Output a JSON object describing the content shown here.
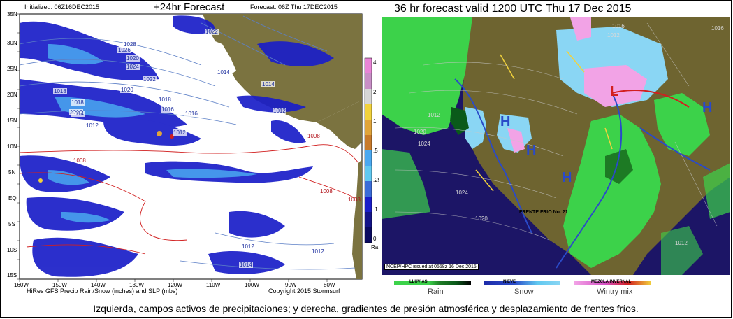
{
  "caption": "Izquierda, campos activos de precipitaciones; y derecha, gradientes de presión atmosférica y desplazamiento de frentes fríos.",
  "left_map": {
    "title": "+24hr Forecast",
    "initialized": "Initialized: 06Z16DEC2015",
    "forecast": "Forecast: 06Z Thu 17DEC2015",
    "footer_left": "HiRes GFS Precip Rain/Snow (inches) and SLP (mbs)",
    "footer_right": "Copyright 2015 Stormsurf",
    "lat_labels": [
      "35N",
      "30N",
      "25N",
      "20N",
      "15N",
      "10N",
      "5N",
      "EQ",
      "5S",
      "10S",
      "15S"
    ],
    "lon_labels": [
      "160W",
      "150W",
      "140W",
      "130W",
      "120W",
      "110W",
      "100W",
      "90W",
      "80W"
    ],
    "pressure_labels": [
      {
        "text": "1028"
      },
      {
        "text": "1026"
      },
      {
        "text": "1024"
      },
      {
        "text": "1022"
      },
      {
        "text": "1020"
      },
      {
        "text": "1018"
      },
      {
        "text": "1018"
      },
      {
        "text": "1016"
      },
      {
        "text": "1014"
      },
      {
        "text": "1012"
      },
      {
        "text": "1020"
      },
      {
        "text": "1018"
      },
      {
        "text": "1016"
      },
      {
        "text": "1016"
      },
      {
        "text": "1014"
      },
      {
        "text": "1012"
      },
      {
        "text": "1022"
      },
      {
        "text": "1014"
      },
      {
        "text": "1012"
      },
      {
        "text": "1012"
      },
      {
        "text": "1012"
      },
      {
        "text": "1014"
      }
    ],
    "red_labels": [
      "1008",
      "1008",
      "1008",
      "1008",
      "1006"
    ],
    "colorbar_ticks": [
      "4",
      "2",
      "1",
      ".5",
      ".25",
      ".1",
      "0"
    ],
    "colorbar_unit": "Ra",
    "colors": {
      "land": "#7b7340",
      "ocean": "#ffffff",
      "precip_dark": "#1a1ec8",
      "precip_light": "#4aa8f0",
      "isobar": "#5c7fc6",
      "low_isobar": "#d11f1f"
    }
  },
  "right_map": {
    "title": "36 hr forecast valid 1200 UTC Thu 17 Dec 2015",
    "centers": [
      {
        "text": "H"
      },
      {
        "text": "H"
      },
      {
        "text": "H"
      },
      {
        "text": "L"
      },
      {
        "text": "H"
      }
    ],
    "front_label": "FRENTE FRIO No. 21",
    "issued": "NCEP/HPC issued at 0558z  16 Dec 2015",
    "isobars": [
      "1016",
      "1012",
      "1020",
      "1024",
      "1012",
      "1024",
      "1020",
      "1016",
      "1012",
      "1016",
      "1016",
      "1012",
      "1016"
    ],
    "legend": {
      "lluvias": "LLUVIAS",
      "nieve": "NIEVE",
      "mezcla": "MEZCLA INVERNAL",
      "rain": "Rain",
      "snow": "Snow",
      "wintry": "Wintry mix"
    },
    "colors": {
      "ocean": "#1c1566",
      "land": "#6e6430",
      "rain": "#3cd24a",
      "snow": "#8ad6f4",
      "mix": "#f2a3e6",
      "front_cold": "#2a4ac8",
      "front_warm": "#d21f1f"
    }
  }
}
